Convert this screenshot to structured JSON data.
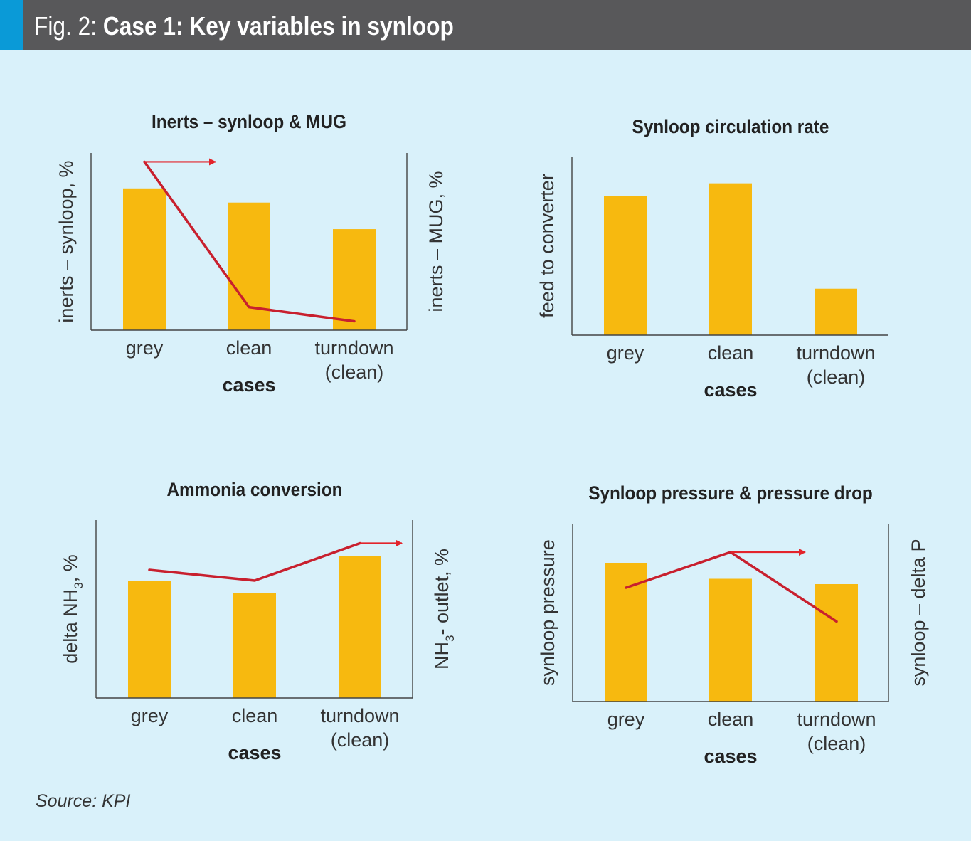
{
  "header": {
    "fig_label": "Fig. 2: ",
    "title": "Case 1: Key variables in synloop",
    "accent_color": "#0a9ad7",
    "background_color": "#58585a"
  },
  "source": "Source: KPI",
  "colors": {
    "bar": "#f7b90f",
    "line": "#c8202e",
    "axis": "#444444",
    "background": "#d9f1fa"
  },
  "chart_data": [
    {
      "type": "bar+line",
      "title": "Inerts – synloop & MUG",
      "categories": [
        "grey",
        "clean",
        "turndown (clean)"
      ],
      "xlabel": "cases",
      "ylabel": "inerts – synloop, %",
      "y2label": "inerts – MUG, %",
      "ylim": [
        0,
        100
      ],
      "y2lim": [
        0,
        100
      ],
      "series": [
        {
          "type": "bar",
          "axis": "left",
          "values": [
            80,
            72,
            57
          ]
        },
        {
          "type": "line",
          "axis": "right",
          "values": [
            95,
            13,
            5
          ]
        }
      ],
      "annotations": [
        "arrow pointing to right axis"
      ],
      "grid": false
    },
    {
      "type": "bar",
      "title": "Synloop circulation rate",
      "categories": [
        "grey",
        "clean",
        "turndown (clean)"
      ],
      "xlabel": "cases",
      "ylabel": "feed to converter",
      "ylim": [
        0,
        100
      ],
      "series": [
        {
          "type": "bar",
          "axis": "left",
          "values": [
            78,
            85,
            26
          ]
        }
      ],
      "grid": false
    },
    {
      "type": "bar+line",
      "title": "Ammonia conversion",
      "categories": [
        "grey",
        "clean",
        "turndown (clean)"
      ],
      "xlabel": "cases",
      "ylabel_main": "delta NH",
      "ylabel_sub": "3",
      "ylabel_tail": ", %",
      "y2label_main": "NH",
      "y2label_sub": "3",
      "y2label_tail": "- outlet, %",
      "ylim": [
        0,
        100
      ],
      "y2lim": [
        0,
        100
      ],
      "series": [
        {
          "type": "bar",
          "axis": "left",
          "values": [
            66,
            59,
            80
          ]
        },
        {
          "type": "line",
          "axis": "right",
          "values": [
            72,
            66,
            87
          ]
        }
      ],
      "annotations": [
        "arrow pointing to right axis"
      ],
      "grid": false
    },
    {
      "type": "bar+line",
      "title": "Synloop pressure & pressure drop",
      "categories": [
        "grey",
        "clean",
        "turndown (clean)"
      ],
      "xlabel": "cases",
      "ylabel": "synloop pressure",
      "y2label": "synloop – delta P",
      "ylim": [
        0,
        100
      ],
      "y2lim": [
        0,
        100
      ],
      "series": [
        {
          "type": "bar",
          "axis": "left",
          "values": [
            78,
            69,
            66
          ]
        },
        {
          "type": "line",
          "axis": "right",
          "values": [
            64,
            84,
            45
          ]
        }
      ],
      "annotations": [
        "arrow pointing to right axis"
      ],
      "grid": false
    }
  ]
}
